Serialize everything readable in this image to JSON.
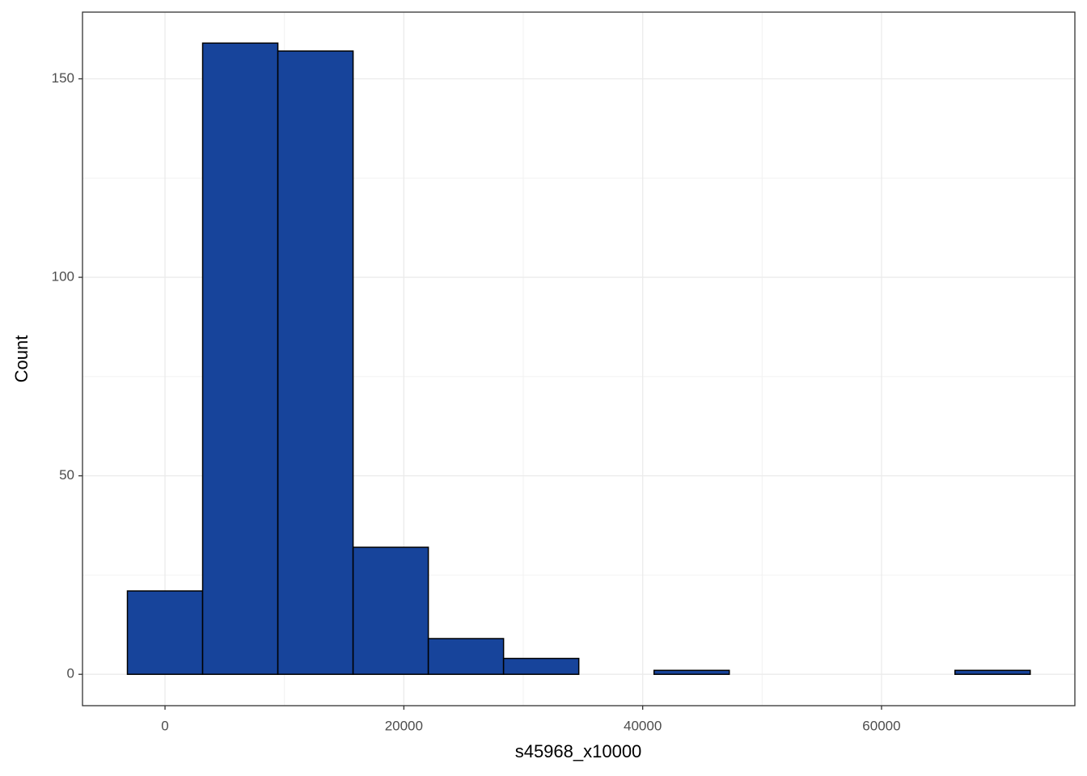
{
  "chart_data": {
    "type": "histogram",
    "x_label": "s45968_x10000",
    "y_label": "Count",
    "bins": [
      -3150,
      3150,
      9450,
      15750,
      22050,
      28350,
      34650,
      40950,
      47250,
      53550,
      59850,
      66150,
      72450
    ],
    "values": [
      21,
      159,
      157,
      32,
      9,
      4,
      0,
      1,
      0,
      0,
      0,
      1
    ],
    "color": "#17449b",
    "xlim": [
      -6910,
      76190
    ],
    "xticks": [
      0,
      20000,
      40000,
      60000
    ],
    "ylim": [
      -7.9,
      166.8
    ],
    "yticks": [
      0,
      50,
      100,
      150
    ],
    "grid": true
  }
}
